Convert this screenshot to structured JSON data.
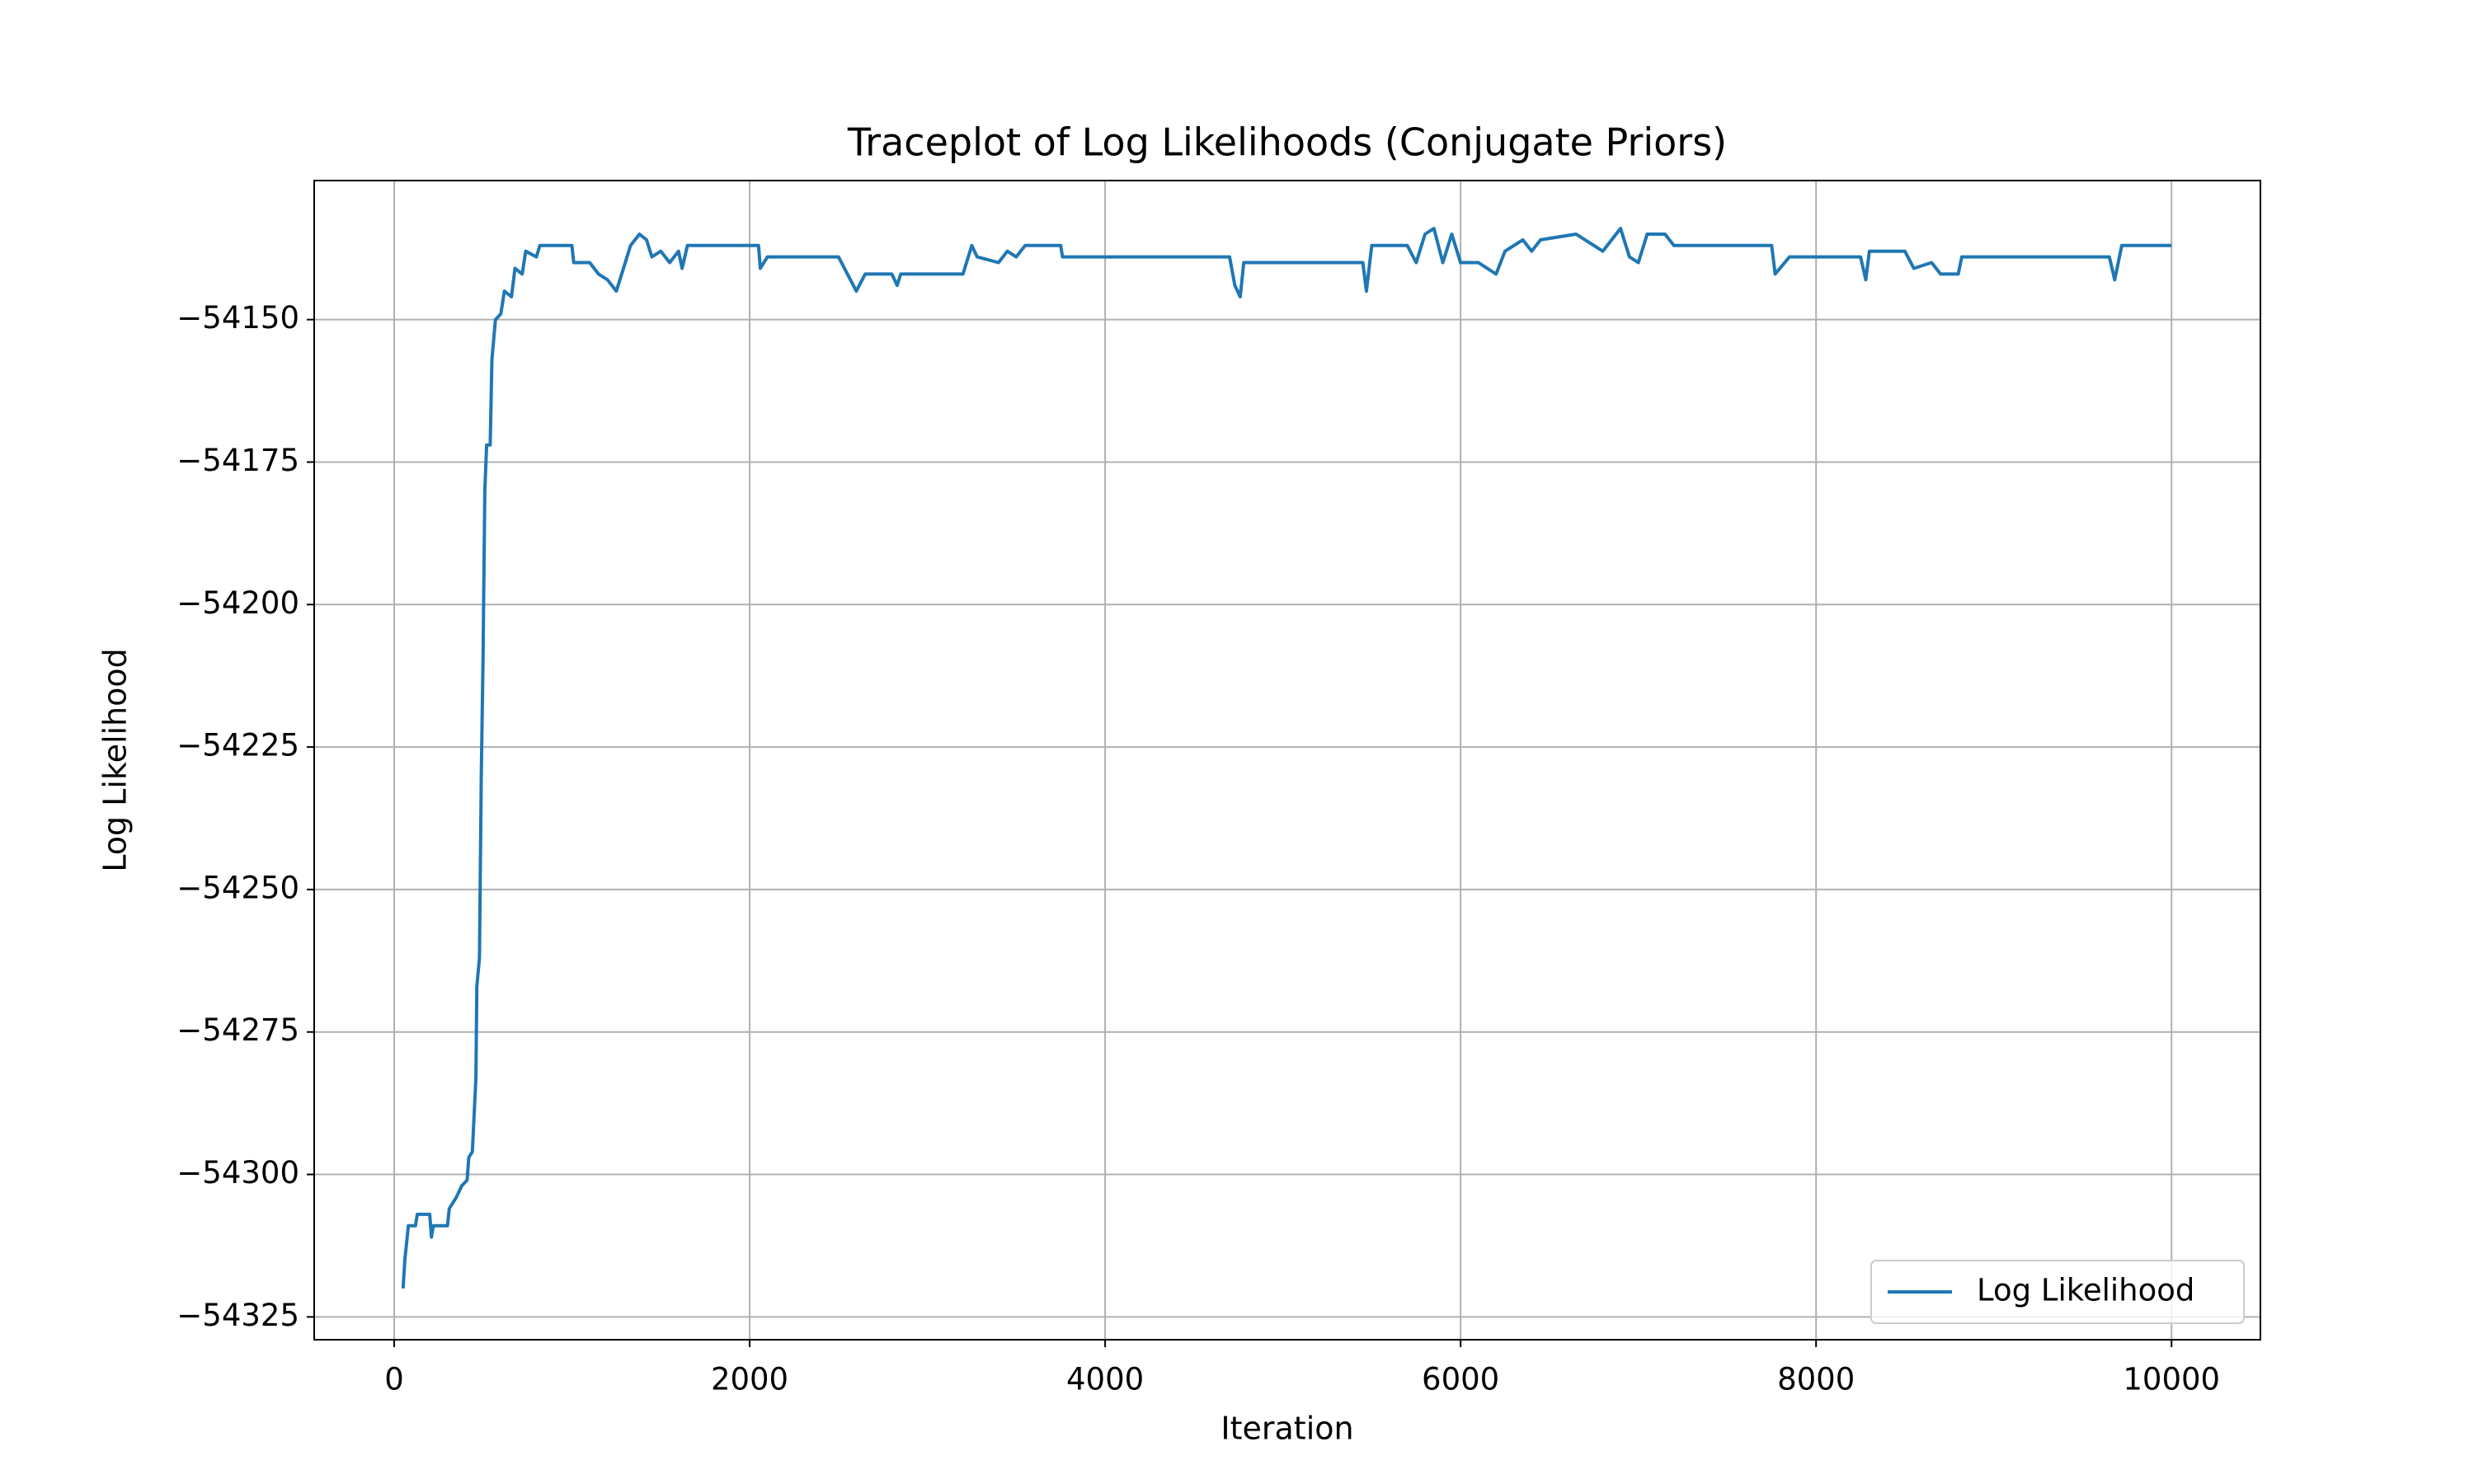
{
  "chart_data": {
    "type": "line",
    "title": "Traceplot of Log Likelihoods (Conjugate Priors)",
    "xlabel": "Iteration",
    "ylabel": "Log Likelihood",
    "x": [
      50,
      60,
      80,
      120,
      130,
      200,
      210,
      220,
      300,
      310,
      350,
      380,
      410,
      420,
      440,
      460,
      465,
      480,
      490,
      500,
      510,
      520,
      540,
      550,
      570,
      600,
      620,
      660,
      680,
      720,
      740,
      800,
      820,
      1000,
      1010,
      1100,
      1150,
      1200,
      1250,
      1300,
      1330,
      1380,
      1420,
      1450,
      1500,
      1550,
      1600,
      1620,
      1650,
      2050,
      2060,
      2100,
      2500,
      2550,
      2600,
      2650,
      2800,
      2830,
      2850,
      3200,
      3250,
      3280,
      3400,
      3450,
      3500,
      3550,
      3750,
      3760,
      4700,
      4730,
      4760,
      4780,
      5450,
      5470,
      5500,
      5700,
      5750,
      5800,
      5850,
      5900,
      5950,
      6000,
      6100,
      6200,
      6250,
      6300,
      6350,
      6400,
      6450,
      6650,
      6750,
      6800,
      6850,
      6900,
      6950,
      7000,
      7050,
      7150,
      7200,
      7750,
      7770,
      7850,
      8250,
      8280,
      8300,
      8500,
      8550,
      8650,
      8700,
      8800,
      8820,
      9650,
      9680,
      9720,
      10000
    ],
    "series": [
      {
        "name": "Log Likelihood",
        "color": "#1f77b4",
        "values": [
          -54320,
          -54315,
          -54309,
          -54309,
          -54307,
          -54307,
          -54311,
          -54309,
          -54309,
          -54306,
          -54304,
          -54302,
          -54301,
          -54297,
          -54296,
          -54283,
          -54267,
          -54262,
          -54230,
          -54210,
          -54180,
          -54172,
          -54172,
          -54157,
          -54150,
          -54149,
          -54145,
          -54146,
          -54141,
          -54142,
          -54138,
          -54139,
          -54137,
          -54137,
          -54140,
          -54140,
          -54142,
          -54143,
          -54145,
          -54140,
          -54137,
          -54135,
          -54136,
          -54139,
          -54138,
          -54140,
          -54138,
          -54141,
          -54137,
          -54137,
          -54141,
          -54139,
          -54139,
          -54142,
          -54145,
          -54142,
          -54142,
          -54144,
          -54142,
          -54142,
          -54137,
          -54139,
          -54140,
          -54138,
          -54139,
          -54137,
          -54137,
          -54139,
          -54139,
          -54144,
          -54146,
          -54140,
          -54140,
          -54145,
          -54137,
          -54137,
          -54140,
          -54135,
          -54134,
          -54140,
          -54135,
          -54140,
          -54140,
          -54142,
          -54138,
          -54137,
          -54136,
          -54138,
          -54136,
          -54135,
          -54137,
          -54138,
          -54136,
          -54134,
          -54139,
          -54140,
          -54135,
          -54135,
          -54137,
          -54137,
          -54142,
          -54139,
          -54139,
          -54143,
          -54138,
          -54138,
          -54141,
          -54140,
          -54142,
          -54142,
          -54139,
          -54139,
          -54143,
          -54137,
          -54137
        ]
      }
    ],
    "xlim": [
      -450,
      10500
    ],
    "ylim": [
      -54329,
      -54125.6
    ],
    "xticks": [
      0,
      2000,
      4000,
      6000,
      8000,
      10000
    ],
    "yticks": [
      {
        "value": -54150,
        "label": "−54150"
      },
      {
        "value": -54175,
        "label": "−54175"
      },
      {
        "value": -54200,
        "label": "−54200"
      },
      {
        "value": -54225,
        "label": "−54225"
      },
      {
        "value": -54250,
        "label": "−54250"
      },
      {
        "value": -54275,
        "label": "−54275"
      },
      {
        "value": -54300,
        "label": "−54300"
      },
      {
        "value": -54325,
        "label": "−54325"
      }
    ],
    "grid": true,
    "legend": "lower right"
  }
}
